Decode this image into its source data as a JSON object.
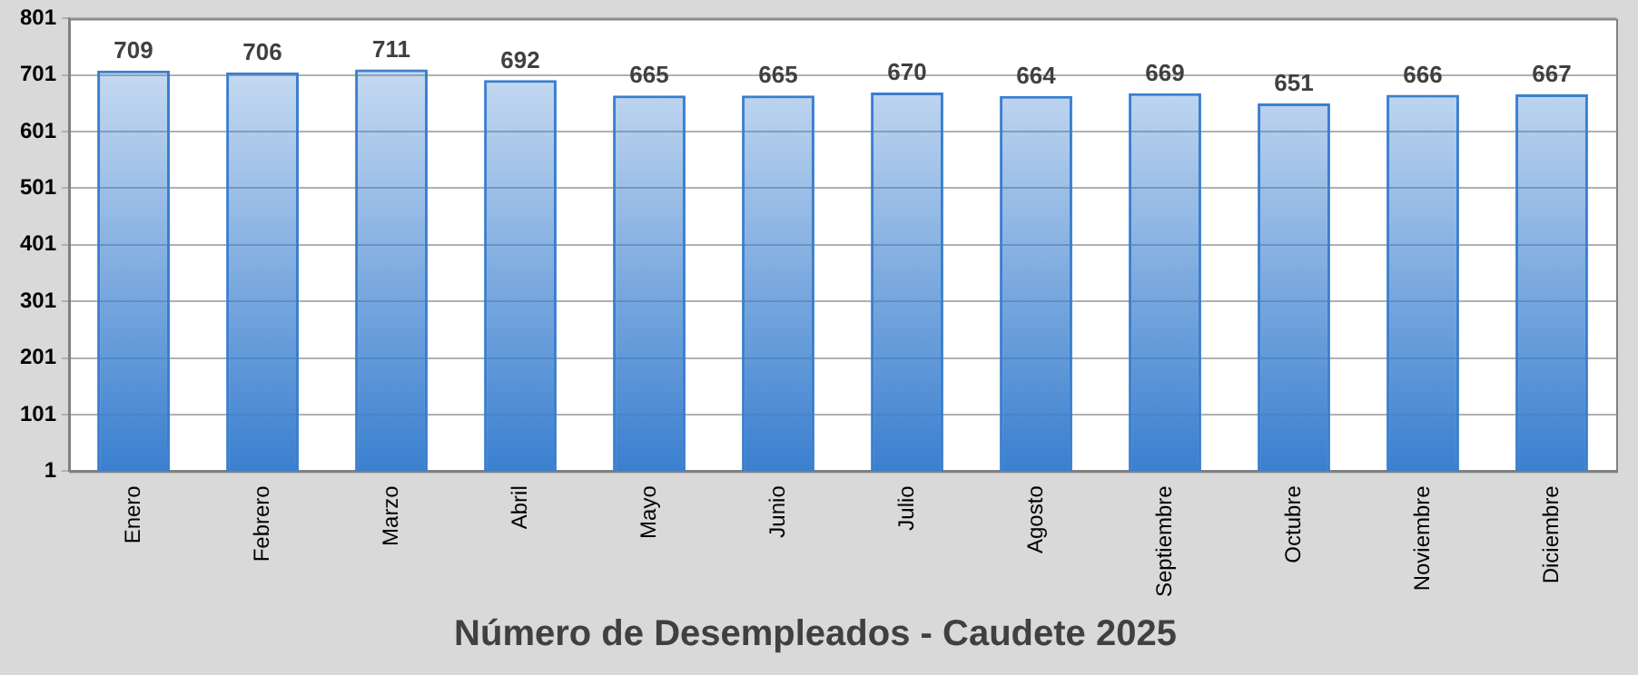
{
  "chart_data": {
    "type": "bar",
    "title": "Número de Desempleados - Caudete 2025",
    "categories": [
      "Enero",
      "Febrero",
      "Marzo",
      "Abril",
      "Mayo",
      "Junio",
      "Julio",
      "Agosto",
      "Septiembre",
      "Octubre",
      "Noviembre",
      "Diciembre"
    ],
    "values": [
      709,
      706,
      711,
      692,
      665,
      665,
      670,
      664,
      669,
      651,
      666,
      667
    ],
    "color": "#3a7fcf",
    "ylim": [
      1,
      801
    ],
    "yticks": [
      1,
      101,
      201,
      301,
      401,
      501,
      601,
      701,
      801
    ],
    "grid": "y",
    "data_labels": true,
    "legend": false
  }
}
